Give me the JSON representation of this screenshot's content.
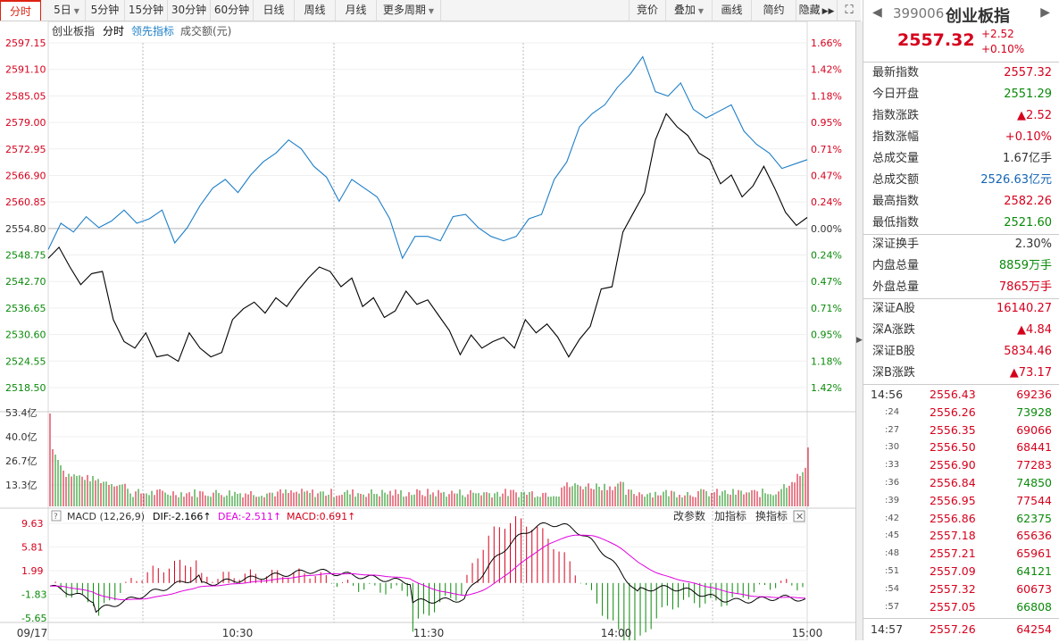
{
  "toolbar": {
    "periods": [
      "分时",
      "5日",
      "5分钟",
      "15分钟",
      "30分钟",
      "60分钟",
      "日线",
      "周线",
      "月线",
      "更多周期"
    ],
    "right_buttons": [
      "竞价",
      "叠加",
      "画线",
      "简约",
      "隐藏"
    ]
  },
  "chart_header": {
    "name": "创业板指",
    "mode": "分时",
    "lead": "领先指标",
    "volume_label": "成交额(元)"
  },
  "price_axis": {
    "left_labels": [
      "2597.15",
      "2591.10",
      "2585.05",
      "2579.00",
      "2572.95",
      "2566.90",
      "2560.85",
      "2554.80",
      "2548.75",
      "2542.70",
      "2536.65",
      "2530.60",
      "2524.55",
      "2518.50"
    ],
    "right_labels": [
      "1.66%",
      "1.42%",
      "1.18%",
      "0.95%",
      "0.71%",
      "0.47%",
      "0.24%",
      "0.00%",
      "0.24%",
      "0.47%",
      "0.71%",
      "0.95%",
      "1.18%",
      "1.42%"
    ]
  },
  "volume_axis": {
    "labels": [
      "53.4亿",
      "40.0亿",
      "26.7亿",
      "13.3亿"
    ]
  },
  "macd": {
    "title": "MACD (12,26,9)",
    "dif": "DIF:-2.166↑",
    "dea": "DEA:-2.511↑",
    "macd": "MACD:0.691↑",
    "actions": [
      "改参数",
      "加指标",
      "换指标"
    ],
    "axis_labels": [
      "9.63",
      "5.81",
      "1.99",
      "-1.83",
      "-5.65"
    ]
  },
  "time_axis": [
    "09/17",
    "10:30",
    "11:30",
    "14:00",
    "15:00"
  ],
  "colors": {
    "up": "#d6001c",
    "down": "#0a8a0a",
    "index_line": "#1e7fc8",
    "price_line": "#000000",
    "dea_line": "#e000e0"
  },
  "chart_data": {
    "type": "line",
    "x_range": [
      "09:30",
      "15:00"
    ],
    "price_ylim": [
      2518.5,
      2597.15
    ],
    "prev_close": 2554.8,
    "series": [
      {
        "name": "创业板指",
        "values": [
          2548.0,
          2550.5,
          2546.0,
          2542.0,
          2544.5,
          2545.0,
          2534.0,
          2529.0,
          2527.5,
          2531.0,
          2525.5,
          2526.0,
          2524.5,
          2531.0,
          2527.5,
          2525.5,
          2526.5,
          2534.0,
          2536.5,
          2538.0,
          2535.5,
          2539.0,
          2537.0,
          2540.5,
          2543.5,
          2546.0,
          2545.0,
          2541.5,
          2543.5,
          2537.0,
          2539.0,
          2534.5,
          2536.0,
          2540.5,
          2537.5,
          2538.5,
          2535.0,
          2531.5,
          2526.0,
          2530.5,
          2527.5,
          2529.0,
          2530.0,
          2527.5,
          2534.0,
          2531.0,
          2533.0,
          2530.0,
          2525.5,
          2529.5,
          2532.5,
          2541.0,
          2541.5,
          2554.0,
          2558.5,
          2563.0,
          2575.0,
          2581.0,
          2578.0,
          2576.0,
          2572.0,
          2570.5,
          2565.0,
          2567.0,
          2562.0,
          2564.5,
          2569.0,
          2564.0,
          2558.5,
          2555.5,
          2557.32
        ]
      },
      {
        "name": "领先指标",
        "values": [
          2550.0,
          2556.0,
          2554.0,
          2557.5,
          2555.0,
          2556.5,
          2559.0,
          2556.0,
          2557.0,
          2559.0,
          2551.5,
          2555.0,
          2560.0,
          2564.0,
          2566.0,
          2563.0,
          2567.0,
          2570.0,
          2572.0,
          2575.0,
          2573.0,
          2569.0,
          2566.5,
          2561.0,
          2566.0,
          2564.0,
          2562.0,
          2557.0,
          2548.0,
          2553.0,
          2553.0,
          2552.0,
          2557.5,
          2558.0,
          2555.0,
          2553.0,
          2552.0,
          2553.0,
          2557.0,
          2558.0,
          2566.0,
          2570.0,
          2578.0,
          2581.0,
          2583.0,
          2587.0,
          2590.0,
          2594.0,
          2586.0,
          2585.0,
          2588.0,
          2582.0,
          2580.0,
          2581.5,
          2583.0,
          2577.0,
          2574.0,
          2572.0,
          2568.5,
          2569.5,
          2570.5
        ]
      }
    ],
    "volume_ylim": [
      0,
      53.4
    ],
    "macd_ylim": [
      -5.65,
      9.63
    ]
  },
  "quote": {
    "code": "399006",
    "name": "创业板指",
    "price": "2557.32",
    "change": "+2.52",
    "change_pct": "+0.10%",
    "rows": [
      {
        "label": "最新指数",
        "value": "2557.32",
        "color": "red"
      },
      {
        "label": "今日开盘",
        "value": "2551.29",
        "color": "green"
      },
      {
        "label": "指数涨跌",
        "value": "▲2.52",
        "color": "red"
      },
      {
        "label": "指数涨幅",
        "value": "+0.10%",
        "color": "red"
      },
      {
        "label": "总成交量",
        "value": "1.67亿手",
        "color": "black"
      },
      {
        "label": "总成交额",
        "value": "2526.63亿元",
        "color": "blue"
      },
      {
        "label": "最高指数",
        "value": "2582.26",
        "color": "red"
      },
      {
        "label": "最低指数",
        "value": "2521.60",
        "color": "green"
      },
      {
        "label": "深证换手",
        "value": "2.30%",
        "color": "black"
      },
      {
        "label": "内盘总量",
        "value": "8859万手",
        "color": "green"
      },
      {
        "label": "外盘总量",
        "value": "7865万手",
        "color": "red"
      },
      {
        "label": "深证A股",
        "value": "16140.27",
        "color": "red"
      },
      {
        "label": "深A涨跌",
        "value": "▲4.84",
        "color": "red"
      },
      {
        "label": "深证B股",
        "value": "5834.46",
        "color": "red"
      },
      {
        "label": "深B涨跌",
        "value": "▲73.17",
        "color": "red"
      }
    ],
    "ticks": [
      {
        "t": "14:56",
        "p": "2556.43",
        "v": "69236",
        "small": false,
        "vc": "red"
      },
      {
        "t": ":24",
        "p": "2556.26",
        "v": "73928",
        "small": true,
        "vc": "green"
      },
      {
        "t": ":27",
        "p": "2556.35",
        "v": "69066",
        "small": true,
        "vc": "red"
      },
      {
        "t": ":30",
        "p": "2556.50",
        "v": "68441",
        "small": true,
        "vc": "red"
      },
      {
        "t": ":33",
        "p": "2556.90",
        "v": "77283",
        "small": true,
        "vc": "red"
      },
      {
        "t": ":36",
        "p": "2556.84",
        "v": "74850",
        "small": true,
        "vc": "green"
      },
      {
        "t": ":39",
        "p": "2556.95",
        "v": "77544",
        "small": true,
        "vc": "red"
      },
      {
        "t": ":42",
        "p": "2556.86",
        "v": "62375",
        "small": true,
        "vc": "green"
      },
      {
        "t": ":45",
        "p": "2557.18",
        "v": "65636",
        "small": true,
        "vc": "red"
      },
      {
        "t": ":48",
        "p": "2557.21",
        "v": "65961",
        "small": true,
        "vc": "red"
      },
      {
        "t": ":51",
        "p": "2557.09",
        "v": "64121",
        "small": true,
        "vc": "green"
      },
      {
        "t": ":54",
        "p": "2557.32",
        "v": "60673",
        "small": true,
        "vc": "red"
      },
      {
        "t": ":57",
        "p": "2557.05",
        "v": "66808",
        "small": true,
        "vc": "green"
      },
      {
        "t": "14:57",
        "p": "2557.26",
        "v": "64254",
        "small": false,
        "vc": "red"
      }
    ]
  }
}
